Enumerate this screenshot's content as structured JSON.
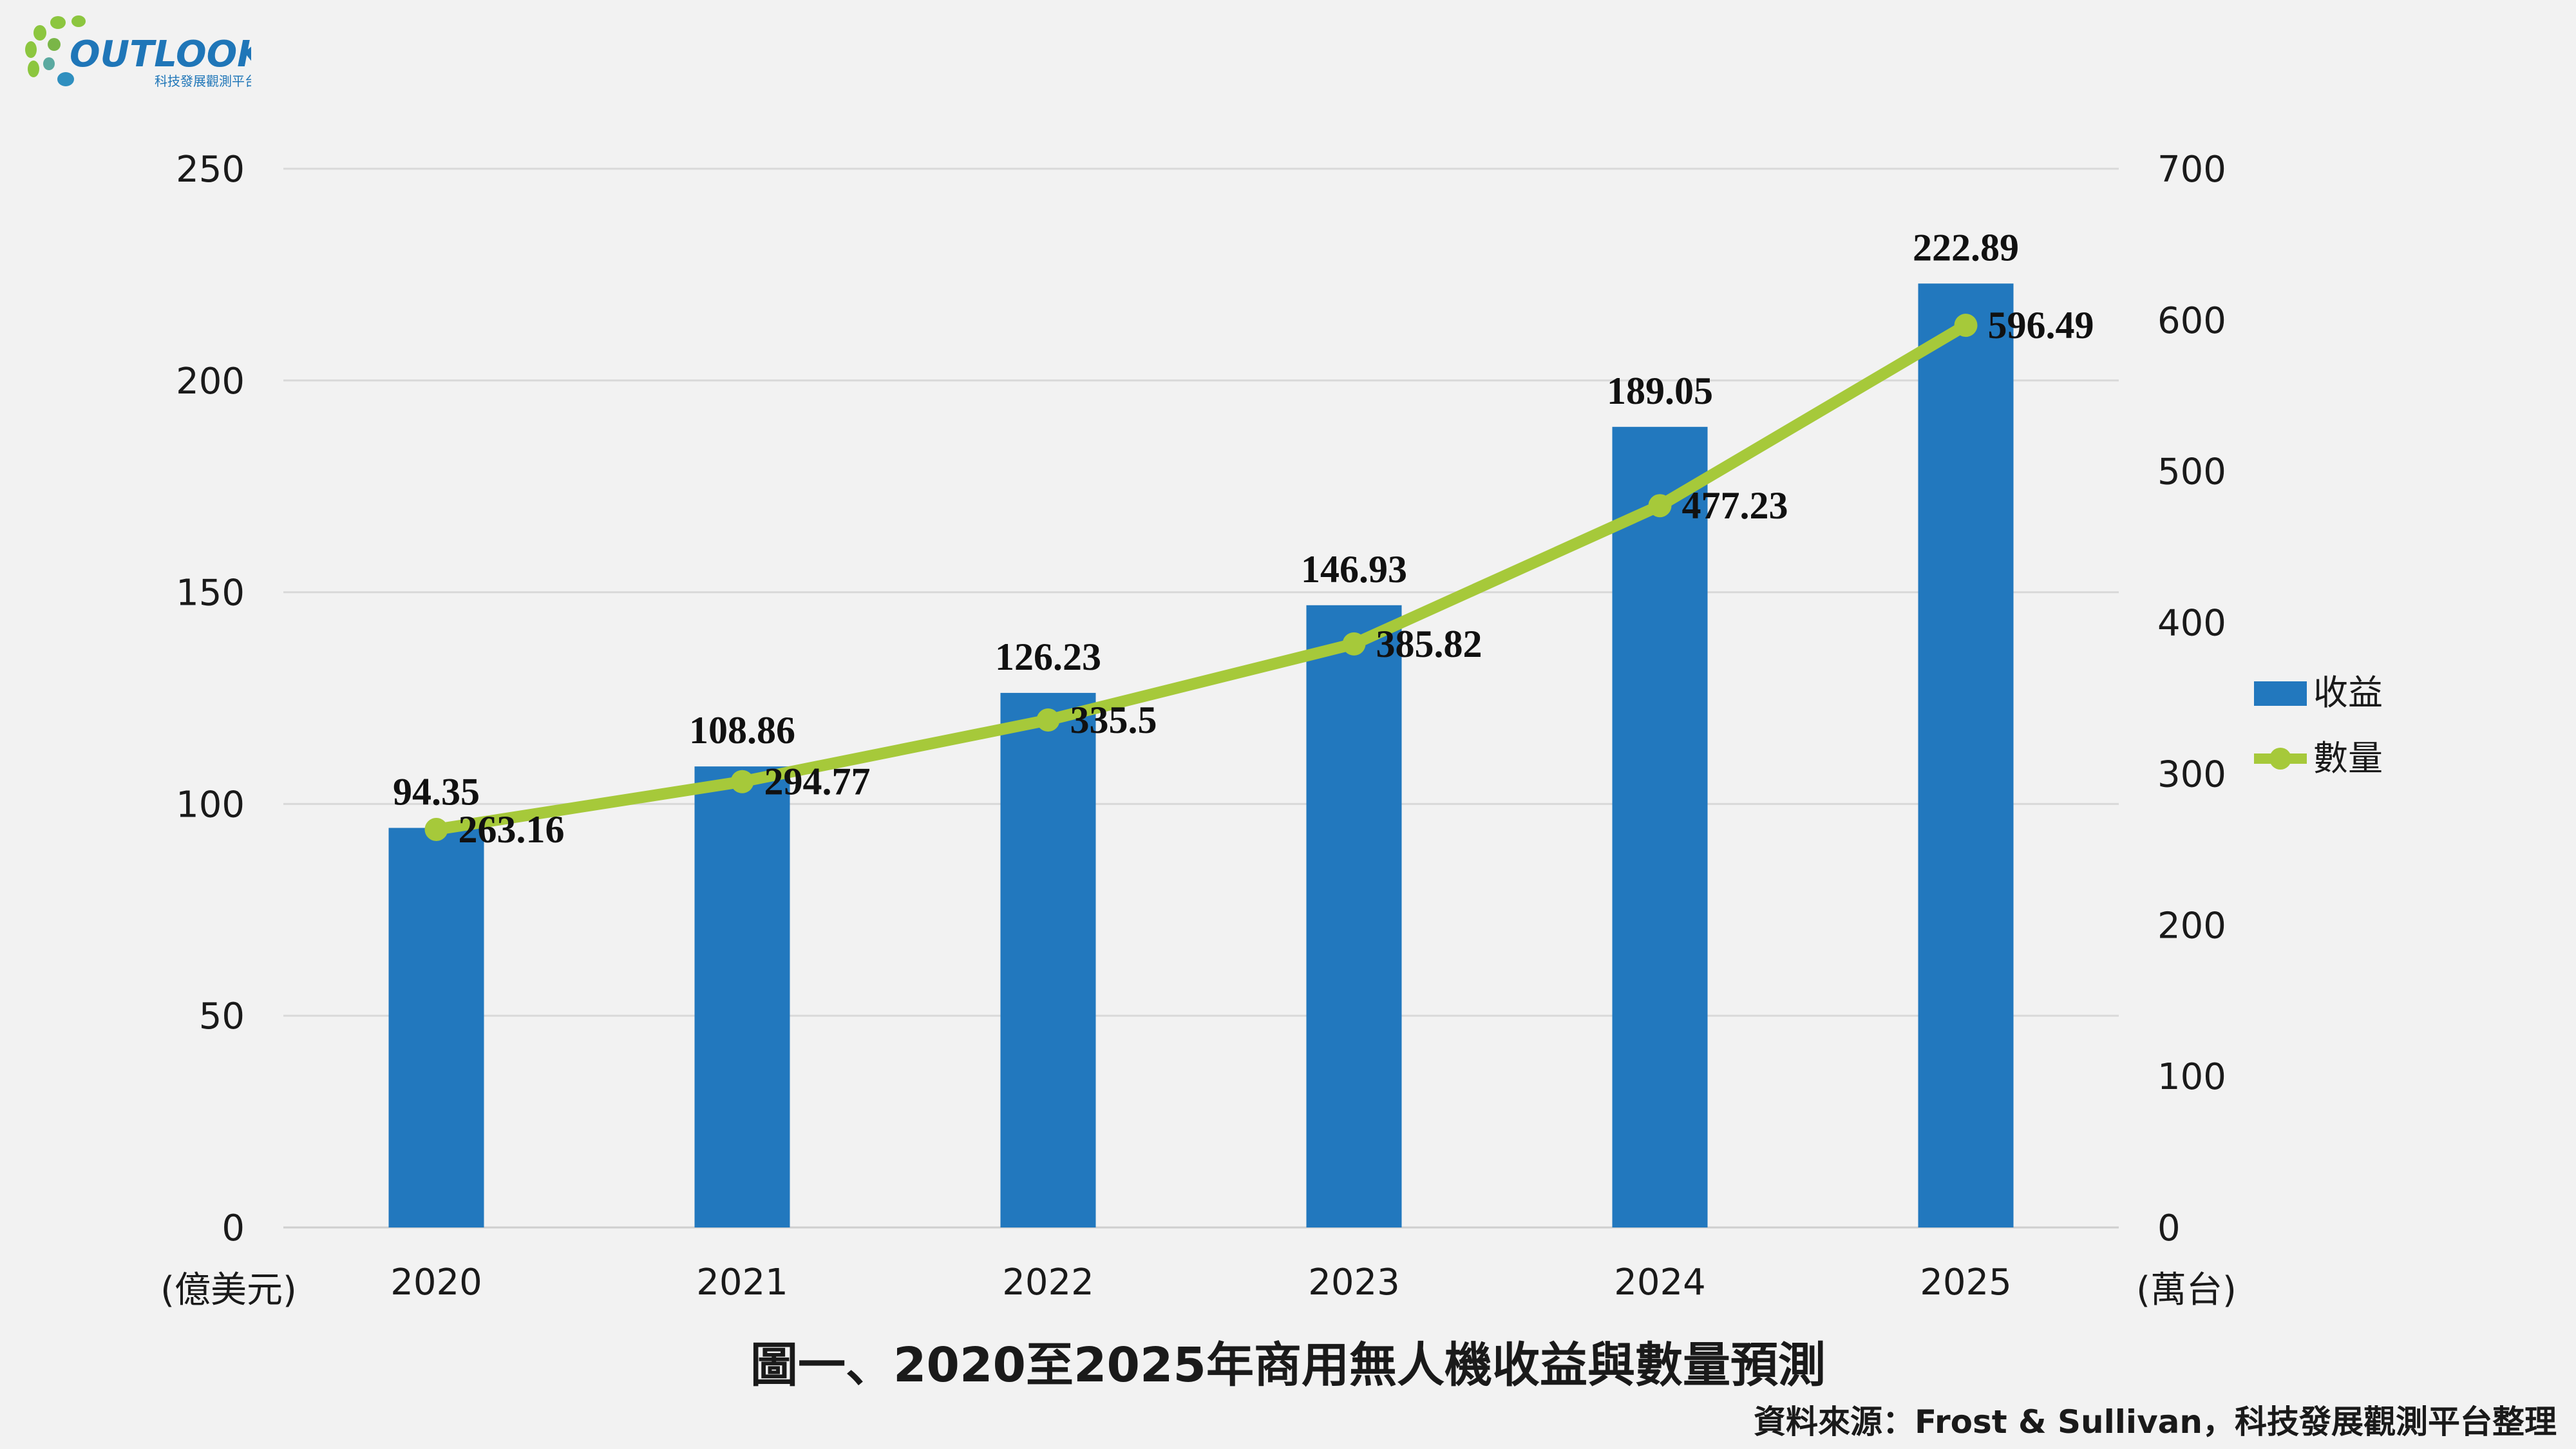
{
  "logo": {
    "name": "OUTLOOK",
    "subtitle": "科技發展觀測平台"
  },
  "chart_data": {
    "type": "bar",
    "categories": [
      "2020",
      "2021",
      "2022",
      "2023",
      "2024",
      "2025"
    ],
    "series": [
      {
        "name": "收益",
        "type": "bar",
        "axis": "left",
        "color": "#2278be",
        "values": [
          94.35,
          108.86,
          126.23,
          146.93,
          189.05,
          222.89
        ],
        "labels": [
          "94.35",
          "108.86",
          "126.23",
          "146.93",
          "189.05",
          "222.89"
        ]
      },
      {
        "name": "數量",
        "type": "line",
        "axis": "right",
        "color": "#a6c93a",
        "values": [
          263.16,
          294.77,
          335.5,
          385.82,
          477.23,
          596.49
        ],
        "labels": [
          "263.16",
          "294.77",
          "335.5",
          "385.82",
          "477.23",
          "596.49"
        ]
      }
    ],
    "y_left": {
      "ylim": [
        0,
        250
      ],
      "ticks": [
        0,
        50,
        100,
        150,
        200,
        250
      ],
      "unit": "(億美元)"
    },
    "y_right": {
      "ylim": [
        0,
        700
      ],
      "ticks": [
        0,
        100,
        200,
        300,
        400,
        500,
        600,
        700
      ],
      "unit": "(萬台)"
    },
    "grid": true,
    "legend_position": "right",
    "title": "圖一、2020至2025年商用無人機收益與數量預測"
  },
  "source": "資料來源：Frost & Sullivan，科技發展觀測平台整理"
}
